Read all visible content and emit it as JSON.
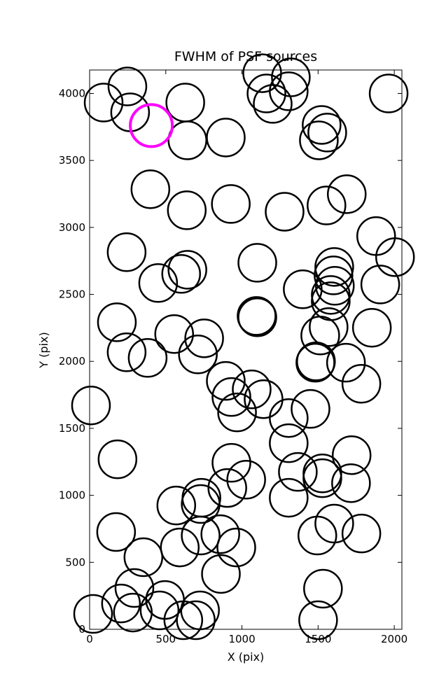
{
  "chart_data": {
    "type": "scatter",
    "title": "FWHM of PSF sources",
    "xlabel": "X (pix)",
    "ylabel": "Y (pix)",
    "xlim": [
      0,
      2050
    ],
    "ylim": [
      0,
      4175
    ],
    "xticks": [
      0,
      500,
      1000,
      1500,
      2000
    ],
    "yticks": [
      0,
      500,
      1000,
      1500,
      2000,
      2500,
      3000,
      3500,
      4000
    ],
    "color": "#000000",
    "x": [
      92,
      248,
      266,
      628,
      642,
      894,
      1133,
      1161,
      1202,
      1307,
      1321,
      1523,
      1560,
      1505,
      1963,
      399,
      638,
      927,
      1280,
      1555,
      1688,
      1881,
      2005,
      243,
      642,
      601,
      450,
      1101,
      1606,
      1601,
      1610,
      1583,
      1583,
      1399,
      1908,
      1096,
      1101,
      179,
      555,
      752,
      711,
      243,
      381,
      1514,
      1569,
      1853,
      1482,
      1486,
      1683,
      1784,
      894,
      931,
      1064,
      1142,
      968,
      9,
      1450,
      1307,
      1307,
      183,
      931,
      1028,
      904,
      1367,
      1528,
      1528,
      1720,
      1716,
      734,
      729,
      569,
      1307,
      174,
      729,
      858,
      963,
      592,
      353,
      1606,
      1495,
      1784,
      862,
      294,
      1532,
      206,
      495,
      284,
      459,
      725,
      615,
      697,
      23,
      1500
    ],
    "y": [
      3932,
      4052,
      3859,
      3932,
      3650,
      3671,
      4151,
      4000,
      3922,
      4016,
      4120,
      3765,
      3708,
      3650,
      4000,
      3285,
      3128,
      3175,
      3117,
      3164,
      3248,
      2935,
      2778,
      2815,
      2684,
      2653,
      2585,
      2736,
      2705,
      2642,
      2564,
      2496,
      2449,
      2538,
      2574,
      2339,
      2329,
      2292,
      2204,
      2172,
      2052,
      2068,
      2026,
      2193,
      2256,
      2251,
      1990,
      2000,
      1990,
      1833,
      1854,
      1734,
      1791,
      1718,
      1619,
      1671,
      1645,
      1577,
      1389,
      1269,
      1243,
      1117,
      1055,
      1175,
      1164,
      1128,
      1300,
      1091,
      982,
      935,
      924,
      982,
      726,
      700,
      710,
      611,
      611,
      538,
      789,
      700,
      715,
      413,
      308,
      303,
      193,
      219,
      125,
      141,
      141,
      68,
      68,
      115,
      68
    ],
    "highlight": {
      "x": 405,
      "y": 3760,
      "color": "#ff00ff"
    }
  }
}
